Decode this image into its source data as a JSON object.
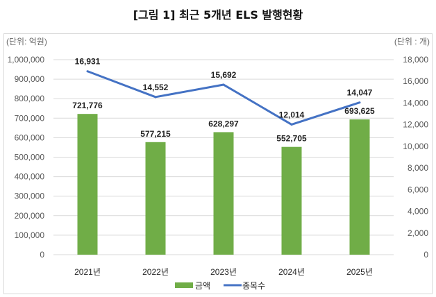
{
  "chart_data": {
    "type": "bar",
    "title": "[그림 1] 최근 5개년 ELS 발행현황",
    "categories": [
      "2021년",
      "2022년",
      "2023년",
      "2024년",
      "2025년"
    ],
    "series": [
      {
        "name": "금액",
        "type": "bar",
        "axis": "left",
        "color": "#70ad47",
        "values": [
          721776,
          577215,
          628297,
          552705,
          693625
        ],
        "labels": [
          "721,776",
          "577,215",
          "628,297",
          "552,705",
          "693,625"
        ]
      },
      {
        "name": "종목수",
        "type": "line",
        "axis": "right",
        "color": "#4472c4",
        "values": [
          16931,
          14552,
          15692,
          12014,
          14047
        ],
        "labels": [
          "16,931",
          "14,552",
          "15,692",
          "12,014",
          "14,047"
        ]
      }
    ],
    "left_axis": {
      "unit_label": "(단위: 억원)",
      "ylim": [
        0,
        1000000
      ],
      "ticks": [
        "0",
        "100,000",
        "200,000",
        "300,000",
        "400,000",
        "500,000",
        "600,000",
        "700,000",
        "800,000",
        "900,000",
        "1,000,000"
      ]
    },
    "right_axis": {
      "unit_label": "(단위 : 개)",
      "ylim": [
        0,
        18000
      ],
      "ticks": [
        "0",
        "2,000",
        "4,000",
        "6,000",
        "8,000",
        "10,000",
        "12,000",
        "14,000",
        "16,000",
        "18,000"
      ]
    },
    "grid": true,
    "legend": "bottom"
  }
}
